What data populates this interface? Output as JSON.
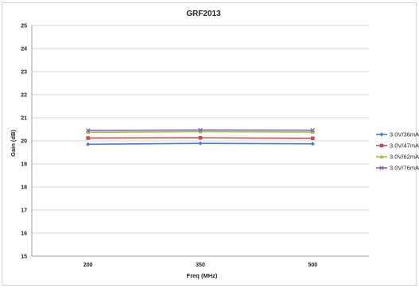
{
  "chart_data": {
    "type": "line",
    "title": "GRF2013",
    "xlabel": "Freq (MHz)",
    "ylabel": "Gain (dB)",
    "categories": [
      "200",
      "350",
      "500"
    ],
    "ylim": [
      15,
      25
    ],
    "yticks": [
      15,
      16,
      17,
      18,
      19,
      20,
      21,
      22,
      23,
      24,
      25
    ],
    "grid": "horizontal",
    "legend_position": "right",
    "series": [
      {
        "name": "3.0V/36mA",
        "values": [
          19.85,
          19.89,
          19.87
        ],
        "color": "#4a7ebb",
        "marker": "diamond"
      },
      {
        "name": "3.0V/47mA",
        "values": [
          20.12,
          20.13,
          20.11
        ],
        "color": "#c0504d",
        "marker": "square"
      },
      {
        "name": "3.0V/62mA",
        "values": [
          20.37,
          20.4,
          20.38
        ],
        "color": "#9bbb59",
        "marker": "triangle"
      },
      {
        "name": "3.0V/76mA",
        "values": [
          20.45,
          20.47,
          20.46
        ],
        "color": "#8064a2",
        "marker": "x"
      }
    ]
  }
}
